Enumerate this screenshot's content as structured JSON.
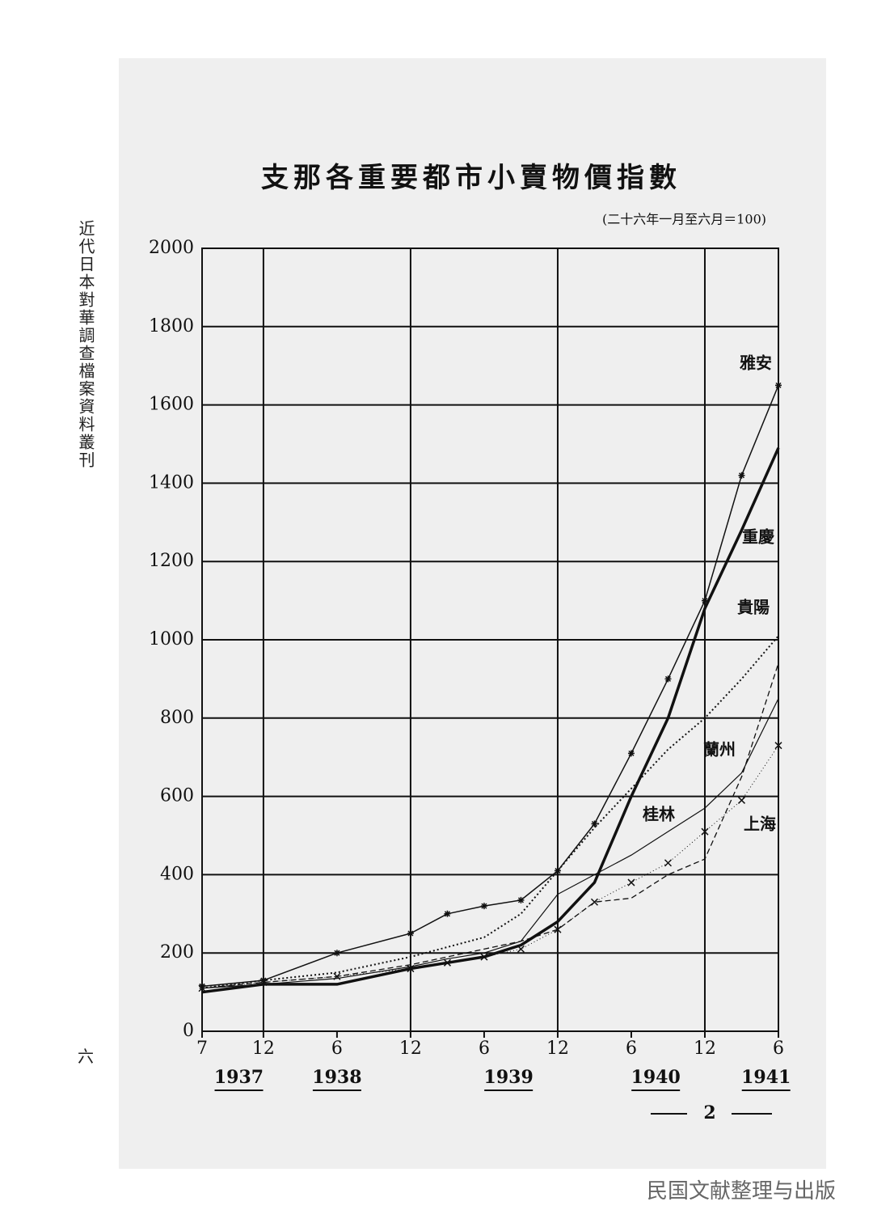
{
  "page": {
    "series_title": "近代日本對華調查檔案資料叢刊",
    "page_number": "六",
    "chart_number": "2",
    "watermark": "民国文献整理与出版"
  },
  "chart_data": {
    "type": "line",
    "title": "支那各重要都市小賣物價指數",
    "subtitle": "(二十六年一月至六月＝100)",
    "x": [
      1937.5,
      1937.917,
      1938.417,
      1938.917,
      1939.167,
      1939.417,
      1939.667,
      1939.917,
      1940.167,
      1940.417,
      1940.667,
      1940.917,
      1941.167,
      1941.417
    ],
    "xlim": [
      1937.5,
      1941.417
    ],
    "xticks": [
      {
        "value": 1937.5,
        "label": "7"
      },
      {
        "value": 1937.917,
        "label": "12"
      },
      {
        "value": 1938.417,
        "label": "6"
      },
      {
        "value": 1938.917,
        "label": "12"
      },
      {
        "value": 1939.417,
        "label": "6"
      },
      {
        "value": 1939.917,
        "label": "12"
      },
      {
        "value": 1940.417,
        "label": "6"
      },
      {
        "value": 1940.917,
        "label": "12"
      },
      {
        "value": 1941.417,
        "label": "6"
      }
    ],
    "year_ticks": [
      {
        "value": 1937.75,
        "label": "1937"
      },
      {
        "value": 1938.417,
        "label": "1938"
      },
      {
        "value": 1939.583,
        "label": "1939"
      },
      {
        "value": 1940.583,
        "label": "1940"
      },
      {
        "value": 1941.333,
        "label": "1941"
      }
    ],
    "ylim": [
      0,
      2000
    ],
    "yticks": [
      0,
      200,
      400,
      600,
      800,
      1000,
      1200,
      1400,
      1600,
      1800,
      2000
    ],
    "grid": true,
    "series": [
      {
        "name": "雅安",
        "color": "#111111",
        "width": 1.5,
        "dash": "none",
        "marker": "star",
        "values": [
          115,
          130,
          200,
          250,
          300,
          320,
          335,
          410,
          530,
          710,
          900,
          1100,
          1420,
          1650
        ]
      },
      {
        "name": "重慶",
        "color": "#111111",
        "width": 3.5,
        "dash": "none",
        "marker": "none",
        "values": [
          100,
          120,
          120,
          160,
          175,
          190,
          220,
          280,
          380,
          600,
          800,
          1080,
          1280,
          1490
        ]
      },
      {
        "name": "貴陽",
        "color": "#111111",
        "width": 2,
        "dash": "2 3",
        "marker": "none",
        "values": [
          110,
          130,
          150,
          190,
          215,
          240,
          300,
          410,
          520,
          620,
          720,
          800,
          900,
          1010
        ]
      },
      {
        "name": "蘭州",
        "color": "#111111",
        "width": 1.3,
        "dash": "7 4",
        "marker": "none",
        "values": [
          110,
          125,
          140,
          170,
          190,
          210,
          230,
          260,
          330,
          340,
          400,
          440,
          650,
          940
        ]
      },
      {
        "name": "桂林",
        "color": "#111111",
        "width": 1.2,
        "dash": "none",
        "marker": "none",
        "values": [
          110,
          120,
          135,
          165,
          185,
          200,
          230,
          350,
          400,
          450,
          510,
          570,
          660,
          850
        ]
      },
      {
        "name": "上海",
        "color": "#111111",
        "width": 1,
        "dash": "1 3",
        "marker": "x",
        "values": [
          110,
          125,
          140,
          160,
          175,
          190,
          210,
          260,
          330,
          380,
          430,
          510,
          590,
          730
        ]
      }
    ]
  }
}
